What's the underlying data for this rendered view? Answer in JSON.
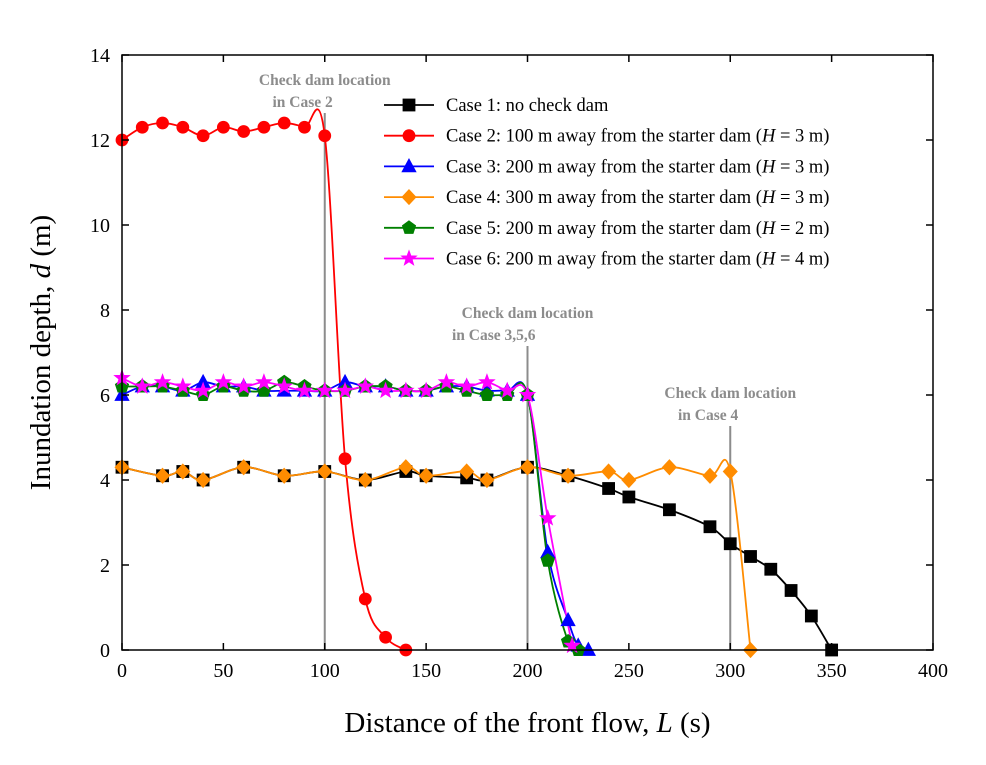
{
  "chart_data": {
    "type": "line",
    "xlabel": "Distance of the front flow, ",
    "xlabel_var": "L",
    "xlabel_unit": " (s)",
    "ylabel": "Inundation depth, ",
    "ylabel_var": "d",
    "ylabel_unit": " (m)",
    "xlim": [
      0,
      400
    ],
    "ylim": [
      0,
      14
    ],
    "xticks": [
      0,
      50,
      100,
      150,
      200,
      250,
      300,
      350,
      400
    ],
    "yticks": [
      0,
      2,
      4,
      6,
      8,
      10,
      12,
      14
    ],
    "legend_position": "top-right",
    "annotations": [
      {
        "id": "case2",
        "x": 100,
        "lines": [
          "Check dam location",
          "in Case 2"
        ]
      },
      {
        "id": "case356",
        "x": 200,
        "lines": [
          "Check dam location",
          "in Case 3,5,6"
        ]
      },
      {
        "id": "case4",
        "x": 300,
        "lines": [
          "Check dam location",
          "in Case 4"
        ]
      }
    ],
    "series": [
      {
        "id": "case1",
        "name": "Case 1: no check dam",
        "legend_parts": [
          "Case 1: no check dam"
        ],
        "color": "#000000",
        "marker": "square",
        "x": [
          0,
          20,
          30,
          40,
          60,
          80,
          100,
          120,
          140,
          150,
          170,
          180,
          200,
          220,
          240,
          250,
          270,
          290,
          300,
          310,
          320,
          330,
          340,
          350
        ],
        "y": [
          4.3,
          4.1,
          4.2,
          4.0,
          4.3,
          4.1,
          4.2,
          4.0,
          4.2,
          4.1,
          4.05,
          4.0,
          4.3,
          4.1,
          3.8,
          3.6,
          3.3,
          2.9,
          2.5,
          2.2,
          1.9,
          1.4,
          0.8,
          0.0
        ]
      },
      {
        "id": "case2",
        "name": "Case 2: 100 m away from the starter dam (H = 3 m)",
        "legend_parts": [
          "Case 2: 100 m away from the starter dam (",
          "H",
          " = 3 m)"
        ],
        "color": "#ff0000",
        "marker": "circle",
        "x": [
          0,
          10,
          20,
          30,
          40,
          50,
          60,
          70,
          80,
          90,
          100,
          110,
          120,
          130,
          140
        ],
        "y": [
          12.0,
          12.3,
          12.4,
          12.3,
          12.1,
          12.3,
          12.2,
          12.3,
          12.4,
          12.3,
          12.1,
          4.5,
          1.2,
          0.3,
          0.0
        ]
      },
      {
        "id": "case3",
        "name": "Case 3: 200 m away from the starter dam (H = 3 m)",
        "legend_parts": [
          "Case 3: 200 m away from the starter dam (",
          "H",
          " = 3 m)"
        ],
        "color": "#0000ff",
        "marker": "triangle",
        "x": [
          0,
          10,
          20,
          30,
          40,
          50,
          60,
          70,
          80,
          90,
          100,
          110,
          120,
          130,
          140,
          150,
          160,
          170,
          180,
          190,
          200,
          210,
          220,
          225,
          230
        ],
        "y": [
          6.0,
          6.2,
          6.2,
          6.1,
          6.3,
          6.2,
          6.2,
          6.1,
          6.1,
          6.1,
          6.1,
          6.3,
          6.2,
          6.2,
          6.1,
          6.1,
          6.2,
          6.2,
          6.1,
          6.1,
          6.0,
          2.3,
          0.7,
          0.1,
          0.0
        ]
      },
      {
        "id": "case4",
        "name": "Case 4: 300 m away from the starter dam (H = 3 m)",
        "legend_parts": [
          "Case 4: 300 m away from the starter dam (",
          "H",
          " = 3 m)"
        ],
        "color": "#ff8c00",
        "marker": "diamond",
        "x": [
          0,
          20,
          30,
          40,
          60,
          80,
          100,
          120,
          140,
          150,
          170,
          180,
          200,
          220,
          240,
          250,
          270,
          290,
          300,
          310
        ],
        "y": [
          4.3,
          4.1,
          4.2,
          4.0,
          4.3,
          4.1,
          4.2,
          4.0,
          4.3,
          4.1,
          4.2,
          4.0,
          4.3,
          4.1,
          4.2,
          4.0,
          4.3,
          4.1,
          4.2,
          0.0
        ]
      },
      {
        "id": "case5",
        "name": "Case 5: 200 m away from the starter dam (H = 2 m)",
        "legend_parts": [
          "Case 5: 200 m away from the starter dam (",
          "H",
          " = 2 m)"
        ],
        "color": "#008000",
        "marker": "pentagon",
        "x": [
          0,
          10,
          20,
          30,
          40,
          50,
          60,
          70,
          80,
          90,
          100,
          110,
          120,
          130,
          140,
          150,
          160,
          170,
          180,
          190,
          200,
          210,
          220,
          225
        ],
        "y": [
          6.2,
          6.2,
          6.2,
          6.1,
          6.0,
          6.2,
          6.1,
          6.1,
          6.3,
          6.2,
          6.1,
          6.1,
          6.2,
          6.2,
          6.1,
          6.1,
          6.2,
          6.1,
          6.0,
          6.0,
          6.0,
          2.1,
          0.2,
          0.0
        ]
      },
      {
        "id": "case6",
        "name": "Case 6: 200 m away from the starter dam (H = 4 m)",
        "legend_parts": [
          "Case 6: 200 m away from the starter dam (",
          "H",
          " = 4 m)"
        ],
        "color": "#ff00ff",
        "marker": "star",
        "x": [
          0,
          10,
          20,
          30,
          40,
          50,
          60,
          70,
          80,
          90,
          100,
          110,
          120,
          130,
          140,
          150,
          160,
          170,
          180,
          190,
          200,
          210,
          222
        ],
        "y": [
          6.4,
          6.2,
          6.3,
          6.2,
          6.1,
          6.3,
          6.2,
          6.3,
          6.2,
          6.1,
          6.1,
          6.1,
          6.2,
          6.1,
          6.1,
          6.1,
          6.3,
          6.2,
          6.3,
          6.1,
          6.0,
          3.1,
          0.1
        ]
      }
    ]
  }
}
